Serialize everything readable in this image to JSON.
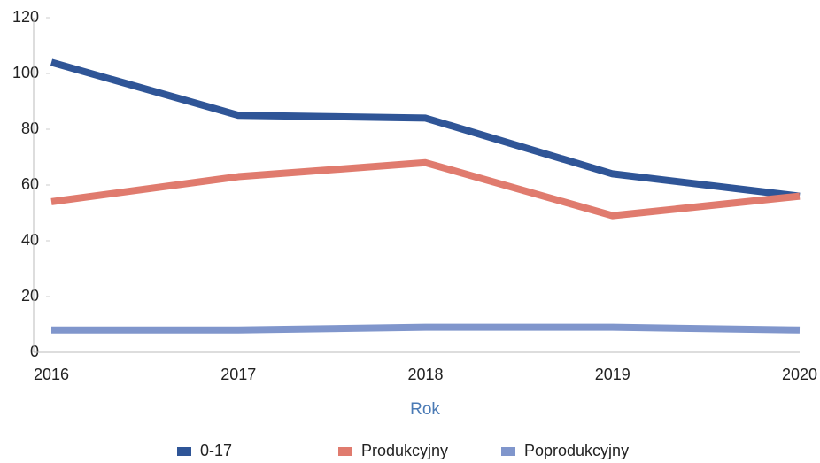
{
  "chart_data": {
    "type": "line",
    "x_label": "Rok",
    "categories": [
      "2016",
      "2017",
      "2018",
      "2019",
      "2020"
    ],
    "series": [
      {
        "name": "0-17",
        "color": "#2f5597",
        "values": [
          104,
          85,
          84,
          64,
          56
        ]
      },
      {
        "name": "Produkcyjny",
        "color": "#e07b6e",
        "values": [
          54,
          63,
          68,
          49,
          56
        ]
      },
      {
        "name": "Poprodukcyjny",
        "color": "#8096cc",
        "values": [
          8,
          8,
          9,
          9,
          8
        ]
      }
    ],
    "ylim": [
      0,
      120
    ],
    "yticks": [
      0,
      20,
      40,
      60,
      80,
      100,
      120
    ],
    "legend": "bottom"
  }
}
